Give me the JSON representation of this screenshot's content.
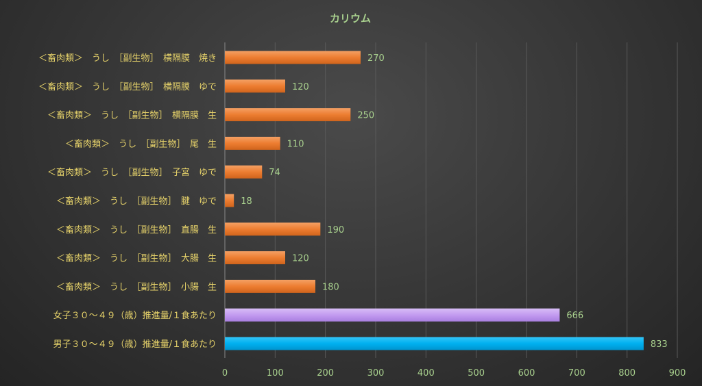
{
  "chart_data": {
    "type": "bar",
    "orientation": "horizontal",
    "title": "カリウム",
    "categories": [
      "＜畜肉類＞　うし　［副生物］　横隔膜　焼き",
      "＜畜肉類＞　うし　［副生物］　横隔膜　ゆで",
      "＜畜肉類＞　うし　［副生物］　横隔膜　生",
      "＜畜肉類＞　うし　［副生物］　尾　生",
      "＜畜肉類＞　うし　［副生物］　子宮　ゆで",
      "＜畜肉類＞　うし　［副生物］　腱　ゆで",
      "＜畜肉類＞　うし　［副生物］　直腸　生",
      "＜畜肉類＞　うし　［副生物］　大腸　生",
      "＜畜肉類＞　うし　［副生物］　小腸　生",
      "女子３０～４９（歳）推進量/１食あたり",
      "男子３０～４９（歳）推進量/１食あたり"
    ],
    "values": [
      270,
      120,
      250,
      110,
      74,
      18,
      190,
      120,
      180,
      666,
      833
    ],
    "data_labels": [
      "270",
      "120",
      "250",
      "110",
      "74",
      "18",
      "190",
      "120",
      "180",
      "666",
      "833"
    ],
    "bar_colors": [
      "#ed7d31",
      "#ed7d31",
      "#ed7d31",
      "#ed7d31",
      "#ed7d31",
      "#ed7d31",
      "#ed7d31",
      "#ed7d31",
      "#ed7d31",
      "#c39bf0",
      "#00b0f0"
    ],
    "xlim": [
      0,
      900
    ],
    "x_ticks": [
      0,
      100,
      200,
      300,
      400,
      500,
      600,
      700,
      800,
      900
    ],
    "xlabel": "",
    "ylabel": "",
    "grid": true,
    "legend": "none"
  }
}
